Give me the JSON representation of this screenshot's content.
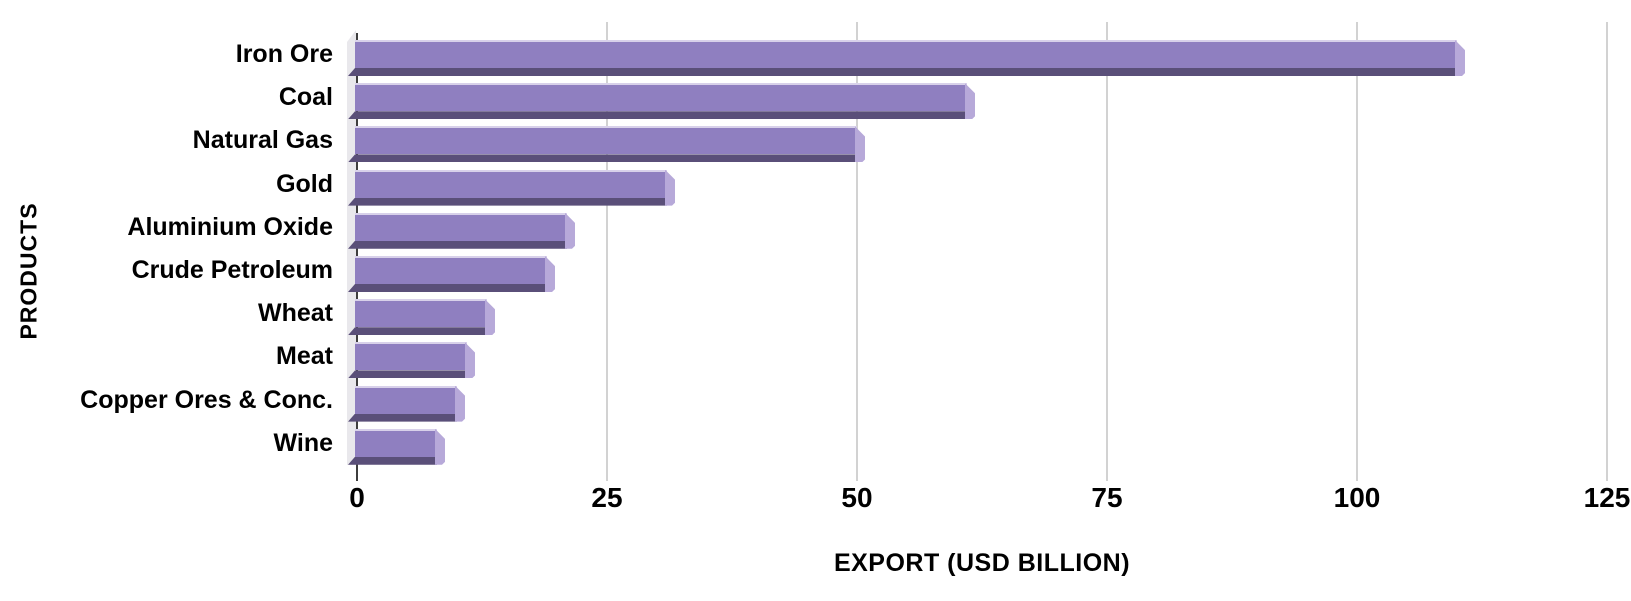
{
  "chart_data": {
    "type": "bar",
    "orientation": "horizontal",
    "title": "",
    "xlabel": "EXPORT (USD BILLION)",
    "ylabel": "PRODUCTS",
    "categories": [
      "Iron Ore",
      "Coal",
      "Natural Gas",
      "Gold",
      "Aluminium Oxide",
      "Crude Petroleum",
      "Wheat",
      "Meat",
      "Copper Ores & Conc.",
      "Wine"
    ],
    "values": [
      110,
      61,
      50,
      31,
      21,
      19,
      13,
      11,
      10,
      8
    ],
    "xlim": [
      0,
      125
    ],
    "xticks": [
      0,
      25,
      50,
      75,
      100,
      125
    ],
    "grid": true,
    "legend": "none",
    "colors": {
      "bar_face": "#8f7fc0",
      "bar_highlight": "#d8d1ea",
      "bar_end_cap": "#b7a9d9",
      "bar_shadow": "#5a4f79",
      "axis_wall": "#e9e8ec",
      "gridline": "#d2d2d2",
      "text": "#000000",
      "background": "#ffffff"
    }
  }
}
